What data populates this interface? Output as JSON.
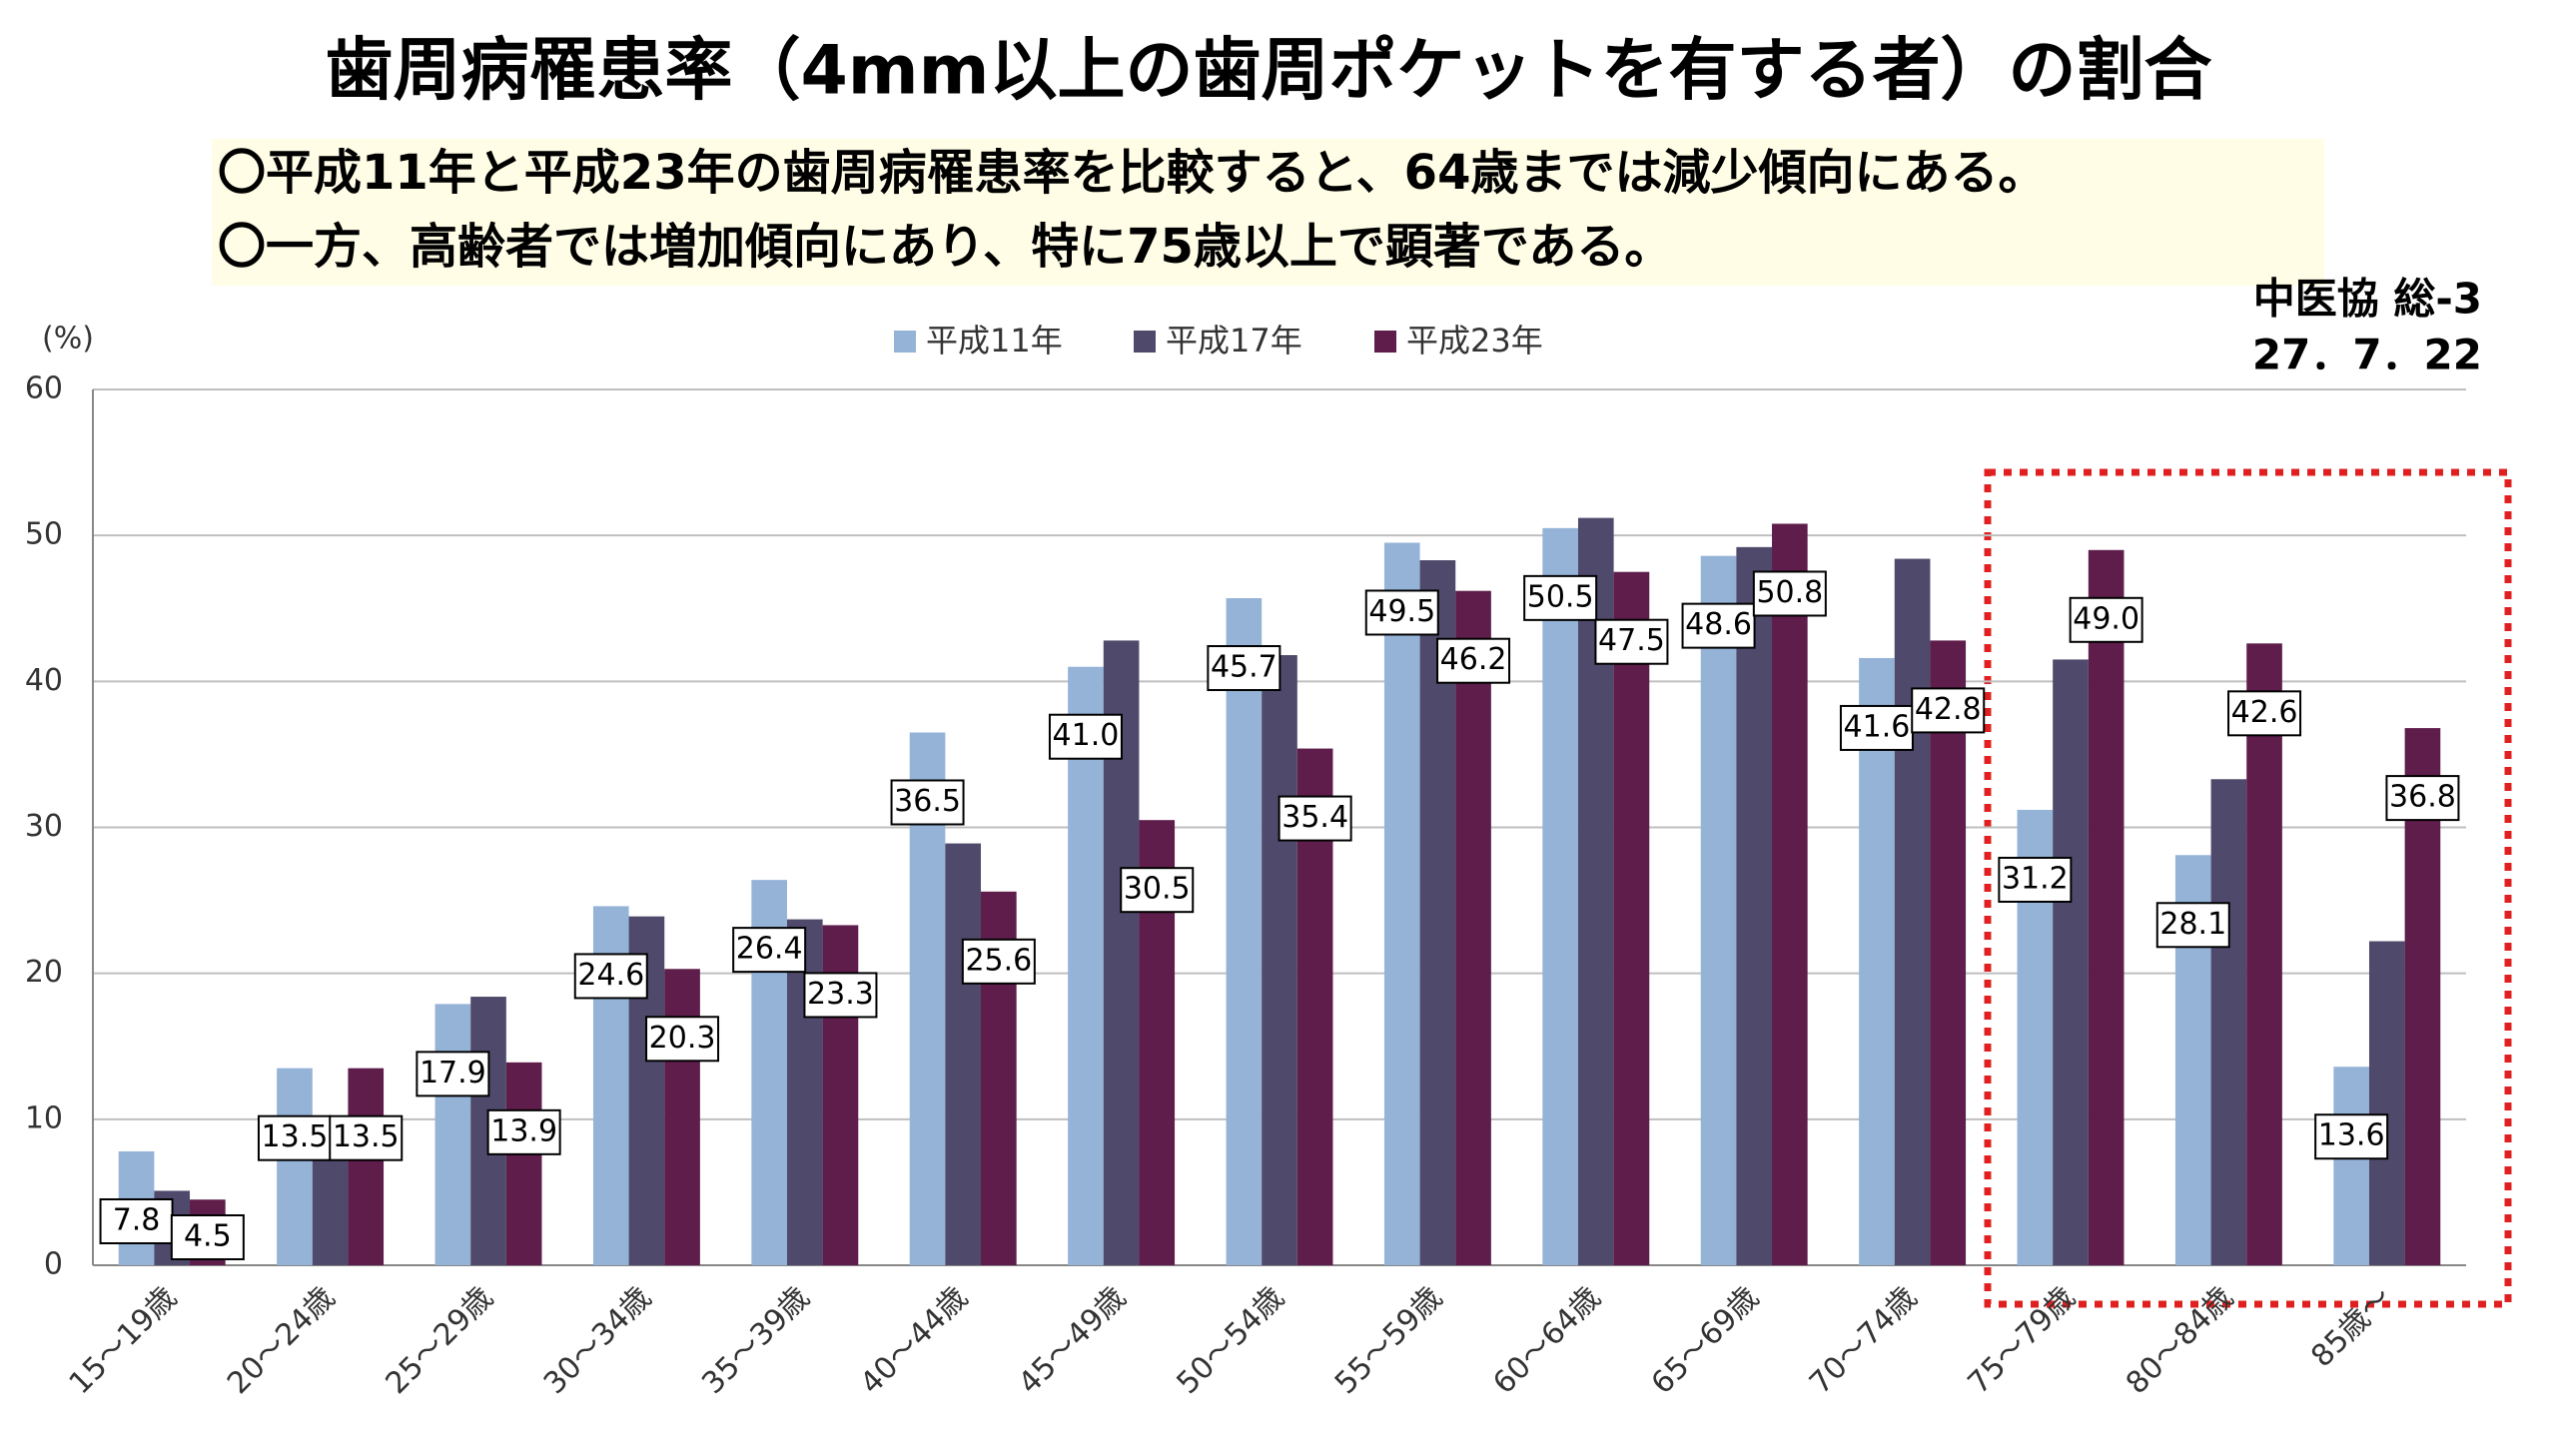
{
  "title": "歯周病罹患率（4mm以上の歯周ポケットを有する者）の割合",
  "subtitle": [
    "〇平成11年と平成23年の歯周病罹患率を比較すると、64歳までは減少傾向にある。",
    "〇一方、高齢者では増加傾向にあり、特に75歳以上で顕著である。"
  ],
  "source": [
    "中医協 総-3",
    "27．7．22"
  ],
  "chart_data": {
    "type": "bar",
    "y_label": "(%)",
    "categories": [
      "15～19歳",
      "20～24歳",
      "25～29歳",
      "30～34歳",
      "35～39歳",
      "40～44歳",
      "45～49歳",
      "50～54歳",
      "55～59歳",
      "60～64歳",
      "65～69歳",
      "70～74歳",
      "75～79歳",
      "80～84歳",
      "85歳～"
    ],
    "series": [
      {
        "name": "平成11年",
        "color": "#95b3d7",
        "values": [
          7.8,
          13.5,
          17.9,
          24.6,
          26.4,
          36.5,
          41.0,
          45.7,
          49.5,
          50.5,
          48.6,
          41.6,
          31.2,
          28.1,
          13.6
        ],
        "value_labels": [
          "7.8",
          "13.5",
          "17.9",
          "24.6",
          "26.4",
          "36.5",
          "41.0",
          "45.7",
          "49.5",
          "50.5",
          "48.6",
          "41.6",
          "31.2",
          "28.1",
          "13.6"
        ]
      },
      {
        "name": "平成17年",
        "color": "#4f4a6b",
        "values": [
          5.1,
          9.6,
          18.4,
          23.9,
          23.7,
          28.9,
          42.8,
          41.8,
          48.3,
          51.2,
          49.2,
          48.4,
          41.5,
          33.3,
          22.2
        ]
      },
      {
        "name": "平成23年",
        "color": "#5e1d4a",
        "values": [
          4.5,
          13.5,
          13.9,
          20.3,
          23.3,
          25.6,
          30.5,
          35.4,
          46.2,
          47.5,
          50.8,
          42.8,
          49.0,
          42.6,
          36.8
        ],
        "value_labels": [
          "4.5",
          "13.5",
          "13.9",
          "20.3",
          "23.3",
          "25.6",
          "30.5",
          "35.4",
          "46.2",
          "47.5",
          "50.8",
          "42.8",
          "49.0",
          "42.6",
          "36.8"
        ]
      }
    ],
    "ylim": [
      0,
      60
    ],
    "yticks": [
      0,
      10,
      20,
      30,
      40,
      50,
      60
    ],
    "grid": true,
    "legend": "top"
  }
}
